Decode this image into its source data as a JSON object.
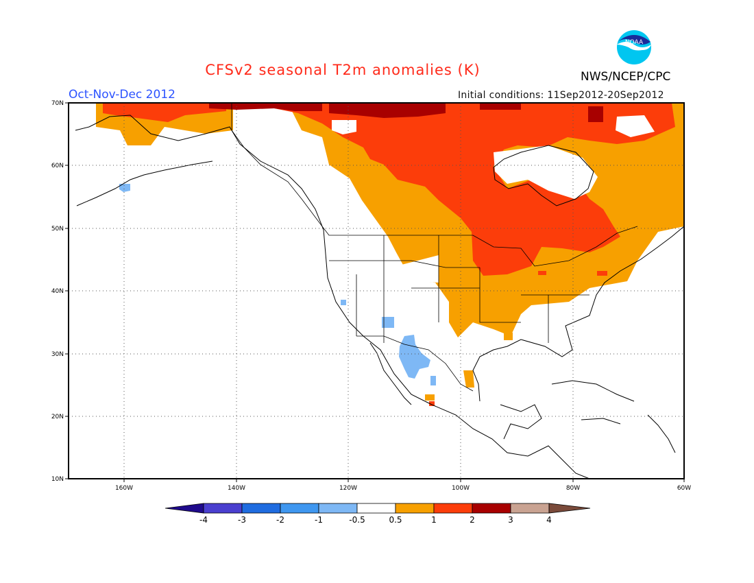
{
  "header": {
    "title": "CFSv2 seasonal T2m anomalies (K)",
    "season": "Oct-Nov-Dec 2012",
    "initial_conditions": "Initial conditions: 11Sep2012-20Sep2012",
    "agency": "NWS/NCEP/CPC",
    "logo_text": "NOAA"
  },
  "map": {
    "lon_range": [
      -172,
      -60
    ],
    "lat_range": [
      10,
      70
    ],
    "lat_labels": [
      "70N",
      "60N",
      "50N",
      "40N",
      "30N",
      "20N",
      "10N"
    ],
    "lon_labels": [
      "160W",
      "140W",
      "120W",
      "100W",
      "80W",
      "60W"
    ],
    "grid": "dotted"
  },
  "colorbar": {
    "tick_labels": [
      "-4",
      "-3",
      "-2",
      "-1",
      "-0.5",
      "0.5",
      "1",
      "2",
      "3",
      "4"
    ],
    "colors": [
      "#1f0a8c",
      "#4a3fcf",
      "#1f6ce0",
      "#3f97f0",
      "#7eb8f5",
      "#ffffff",
      "#f7a000",
      "#fc3d0a",
      "#a80000",
      "#c9a392",
      "#7a4a3a"
    ]
  },
  "legend_colors": {
    "cool_light": "#7eb8f5",
    "warm_1": "#f7a000",
    "warm_2": "#fc3d0a",
    "warm_3": "#a80000",
    "coast": "#000000"
  }
}
